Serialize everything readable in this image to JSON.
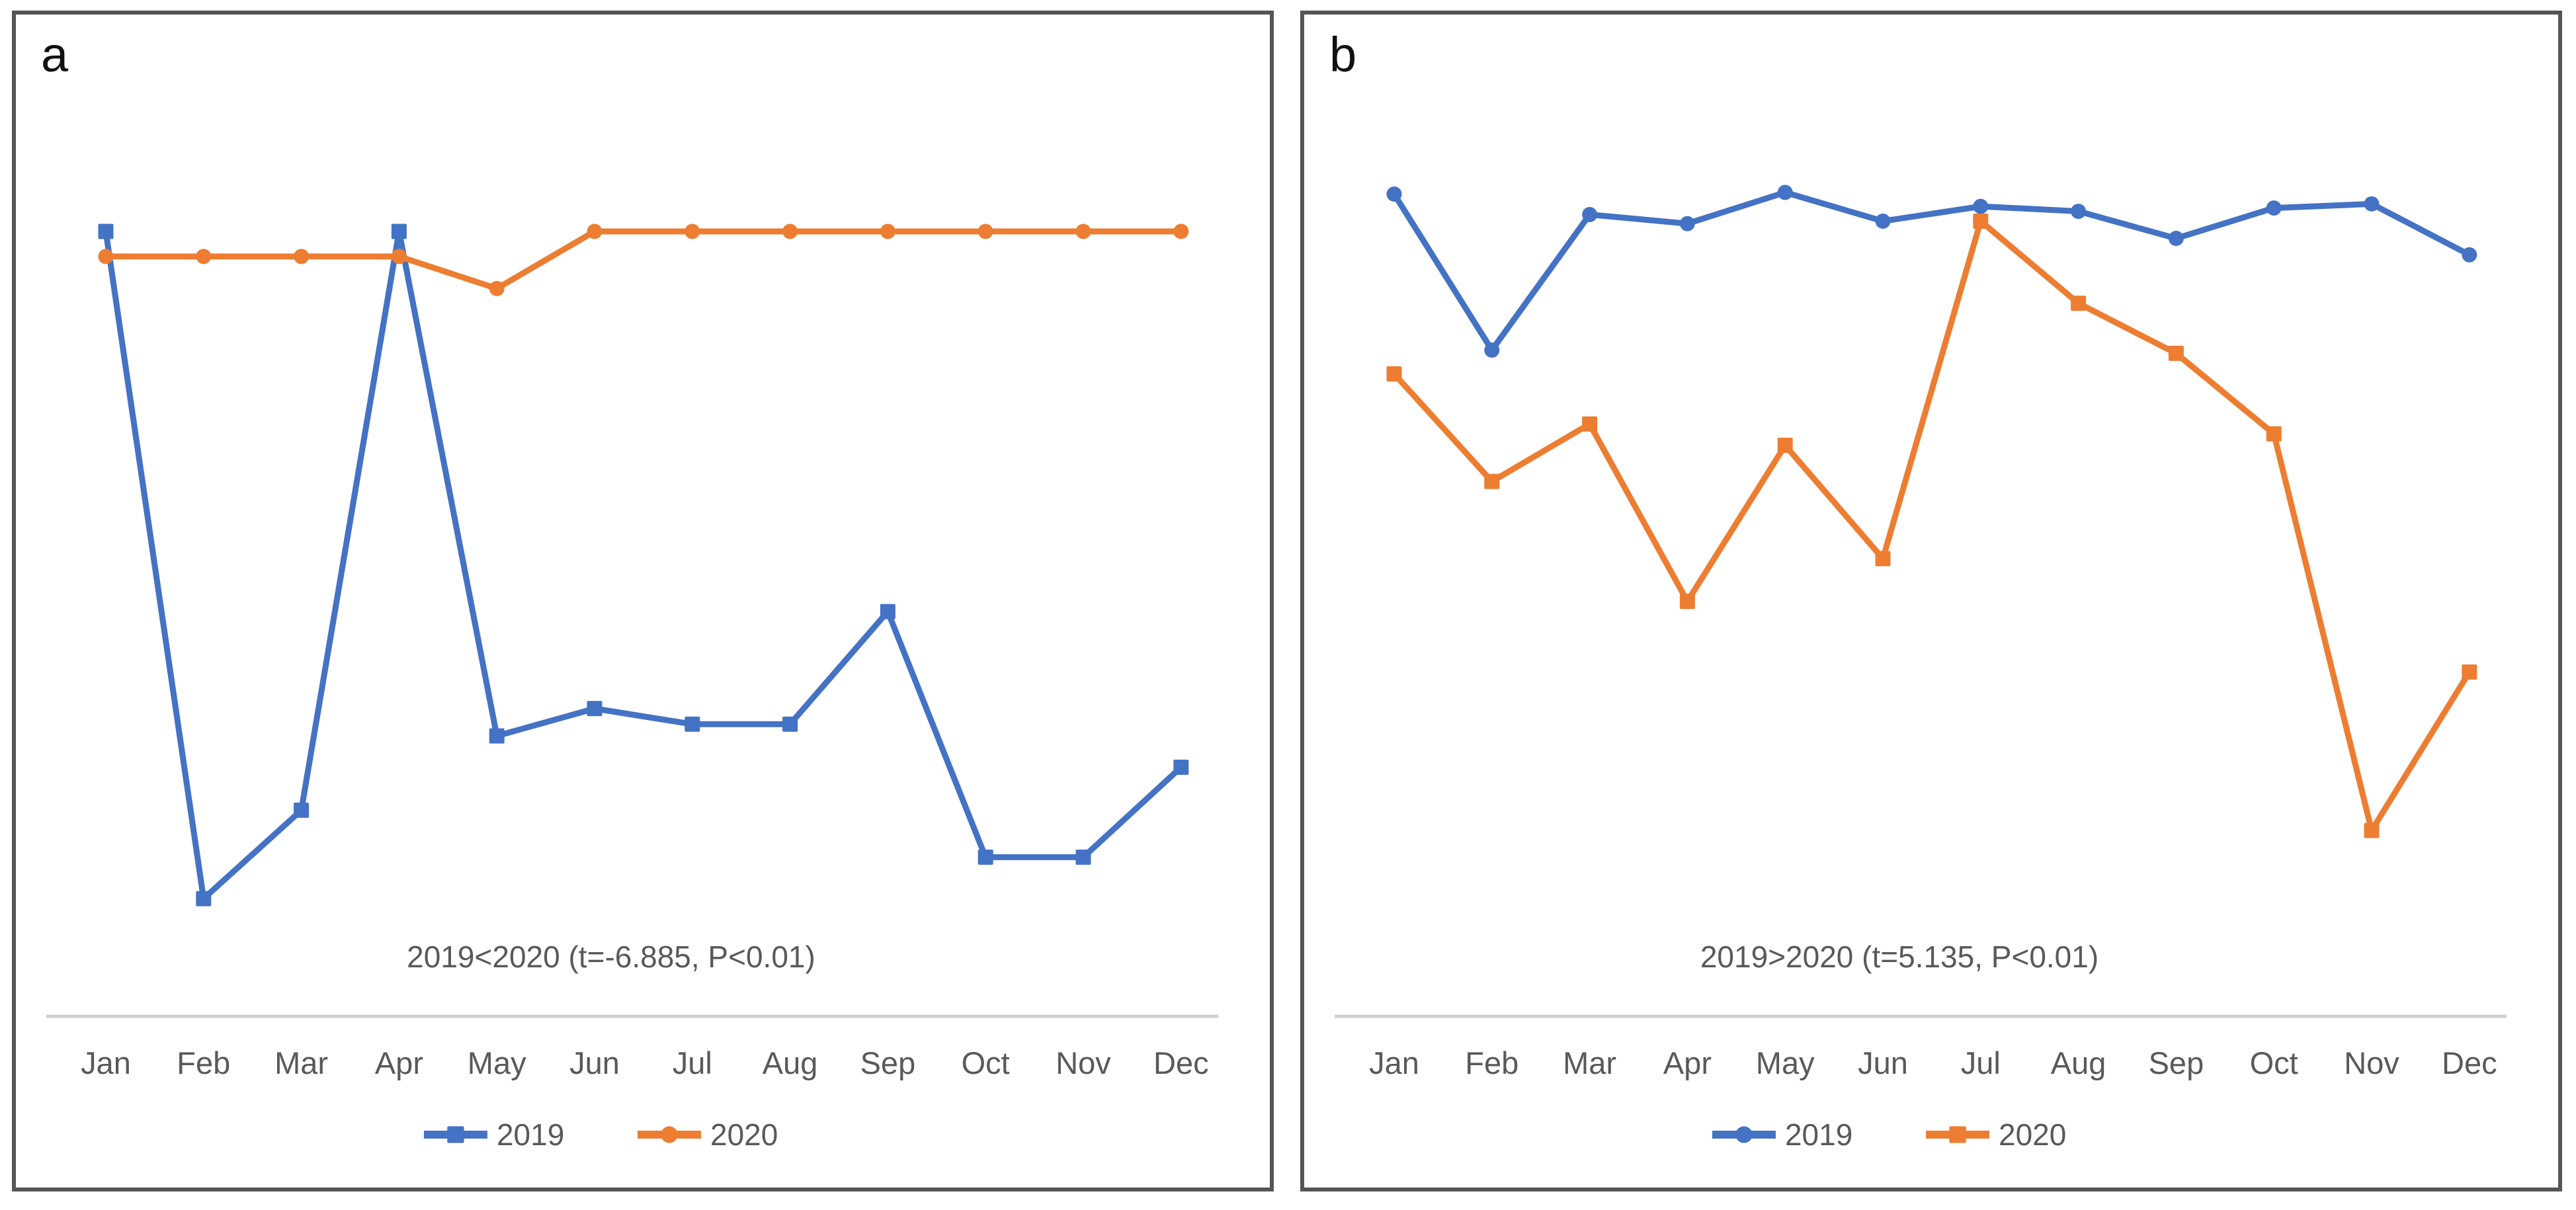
{
  "figure": {
    "background": "#ffffff",
    "panel_border_color": "#555555",
    "text_color": "#595959",
    "axis_line_color": "#d0d0d0",
    "series_blue": "#4472C4",
    "series_orange": "#ED7D31"
  },
  "chart_data": [
    {
      "type": "line",
      "panel_label": "a",
      "annotation": "2019<2020 (t=-6.885, P<0.01)",
      "categories": [
        "Jan",
        "Feb",
        "Mar",
        "Apr",
        "May",
        "Jun",
        "Jul",
        "Aug",
        "Sep",
        "Oct",
        "Nov",
        "Dec"
      ],
      "series": [
        {
          "name": "2019",
          "color": "#4472C4",
          "marker": "square",
          "values": [
            100.0,
            14.7,
            26.0,
            100.0,
            35.5,
            39.0,
            37.0,
            37.0,
            51.4,
            20.0,
            20.0,
            31.5
          ]
        },
        {
          "name": "2020",
          "color": "#ED7D31",
          "marker": "circle",
          "values": [
            96.8,
            96.8,
            96.8,
            96.8,
            92.7,
            100.0,
            100.0,
            100.0,
            100.0,
            100.0,
            100.0,
            100.0
          ]
        }
      ],
      "xlabel": "",
      "ylabel": "",
      "y_axis_visible": false,
      "ylim": [
        0,
        105
      ],
      "grid": false,
      "legend_position": "bottom",
      "value_note": "relative units estimated from pixel positions; no y-axis shown in source"
    },
    {
      "type": "line",
      "panel_label": "b",
      "annotation": "2019>2020 (t=5.135, P<0.01)",
      "categories": [
        "Jan",
        "Feb",
        "Mar",
        "Apr",
        "May",
        "Jun",
        "Jul",
        "Aug",
        "Sep",
        "Oct",
        "Nov",
        "Dec"
      ],
      "series": [
        {
          "name": "2019",
          "color": "#4472C4",
          "marker": "circle",
          "values": [
            99.8,
            80.8,
            97.3,
            96.2,
            100.0,
            96.5,
            98.3,
            97.7,
            94.4,
            98.1,
            98.6,
            92.4
          ]
        },
        {
          "name": "2020",
          "color": "#ED7D31",
          "marker": "square",
          "values": [
            77.9,
            64.8,
            71.8,
            50.2,
            69.2,
            55.4,
            96.5,
            86.5,
            80.4,
            70.6,
            22.3,
            41.6
          ]
        }
      ],
      "xlabel": "",
      "ylabel": "",
      "y_axis_visible": false,
      "ylim": [
        0,
        105
      ],
      "grid": false,
      "legend_position": "bottom",
      "value_note": "relative units estimated from pixel positions; no y-axis shown in source"
    }
  ]
}
